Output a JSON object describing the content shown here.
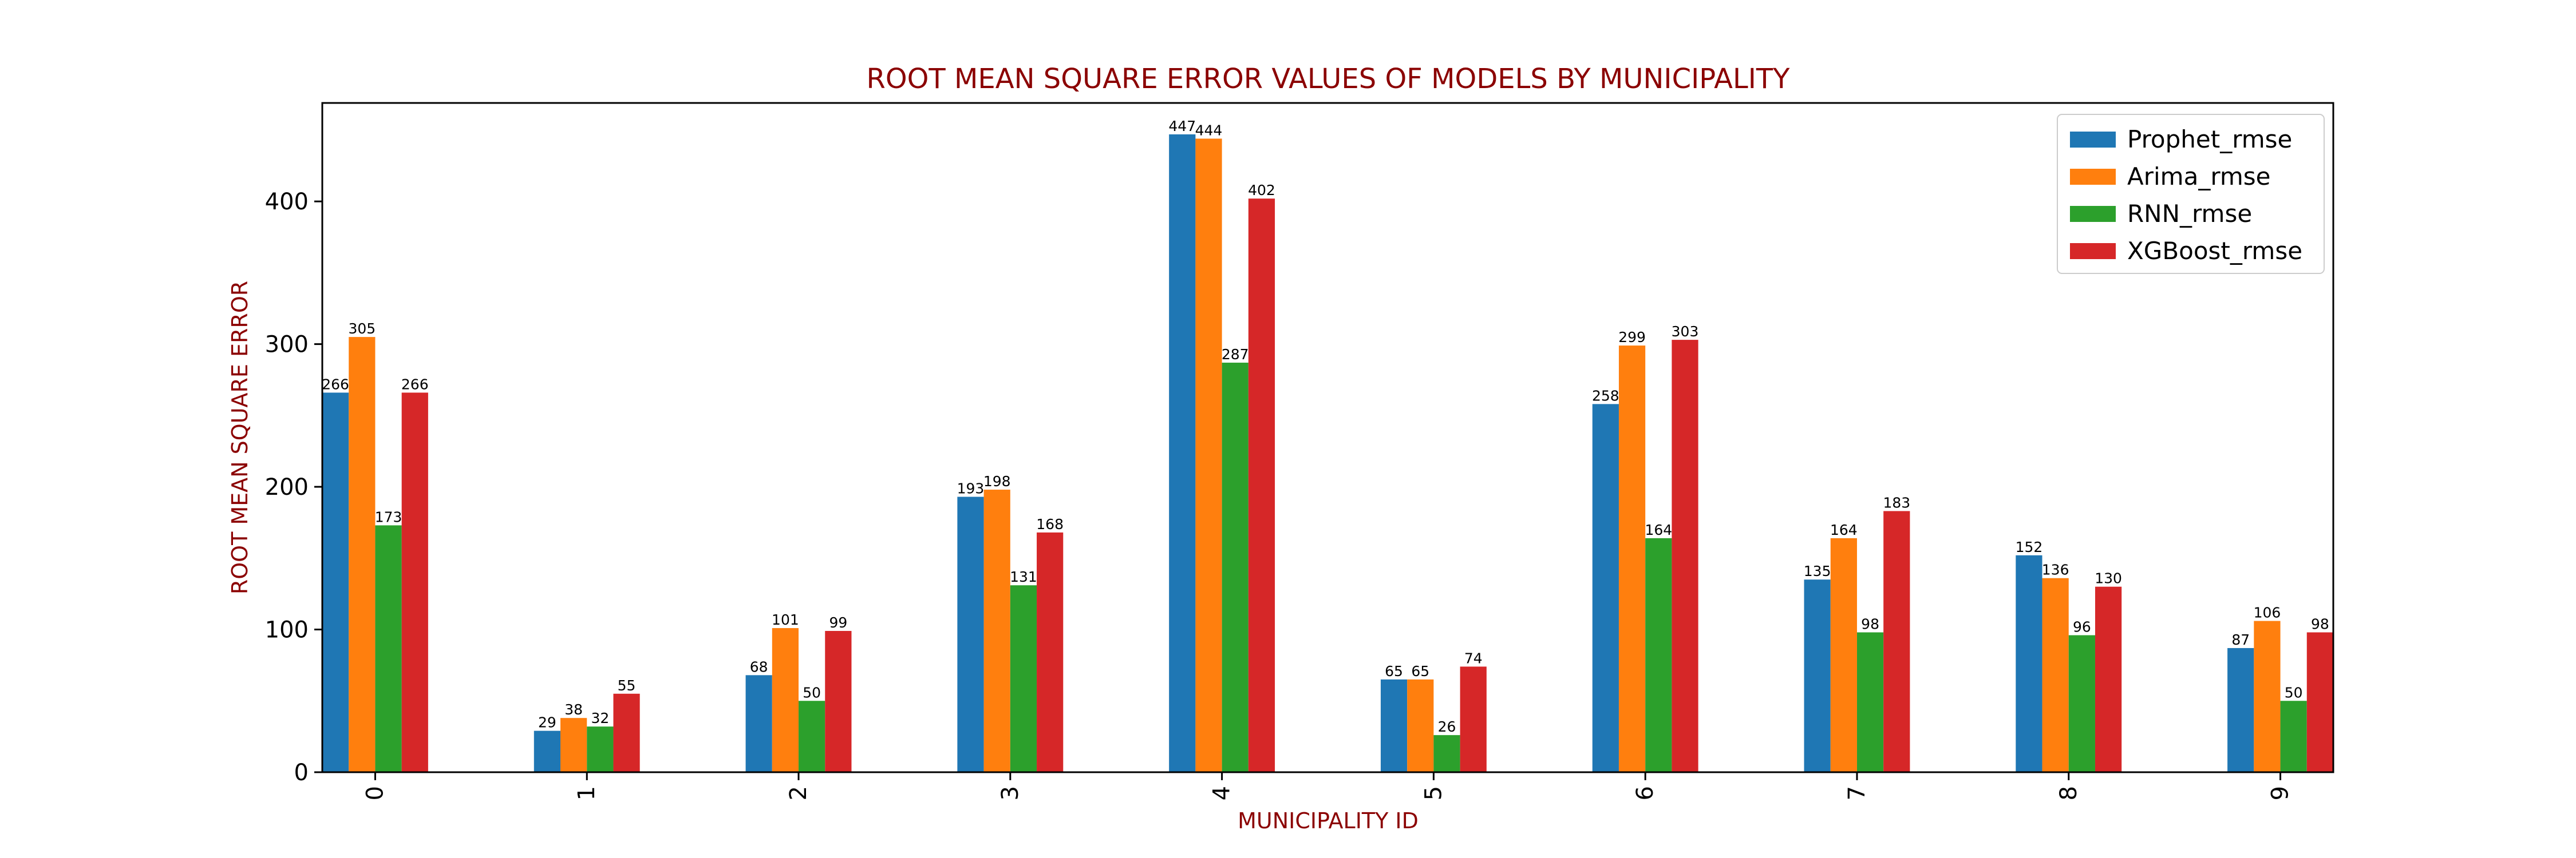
{
  "chart_data": {
    "type": "bar",
    "title": "ROOT MEAN SQUARE ERROR VALUES OF MODELS BY MUNICIPALITY",
    "xlabel": "MUNICIPALITY ID",
    "ylabel": "ROOT MEAN SQUARE ERROR",
    "categories": [
      "0",
      "1",
      "2",
      "3",
      "4",
      "5",
      "6",
      "7",
      "8",
      "9"
    ],
    "series": [
      {
        "name": "Prophet_rmse",
        "color": "#1f77b4",
        "values": [
          266,
          29,
          68,
          193,
          447,
          65,
          258,
          135,
          152,
          87
        ]
      },
      {
        "name": "Arima_rmse",
        "color": "#ff7f0e",
        "values": [
          305,
          38,
          101,
          198,
          444,
          65,
          299,
          164,
          136,
          106
        ]
      },
      {
        "name": "RNN_rmse",
        "color": "#2ca02c",
        "values": [
          173,
          32,
          50,
          131,
          287,
          26,
          164,
          98,
          96,
          50
        ]
      },
      {
        "name": "XGBoost_rmse",
        "color": "#d62728",
        "values": [
          266,
          55,
          99,
          168,
          402,
          74,
          303,
          183,
          130,
          98
        ]
      }
    ],
    "yticks": [
      0,
      100,
      200,
      300,
      400
    ],
    "ylim": [
      0,
      469
    ],
    "x_tick_rotation": 90,
    "grid": false,
    "legend_position": "top-right",
    "title_color": "#8b0000",
    "axis_label_color": "#8b0000"
  }
}
